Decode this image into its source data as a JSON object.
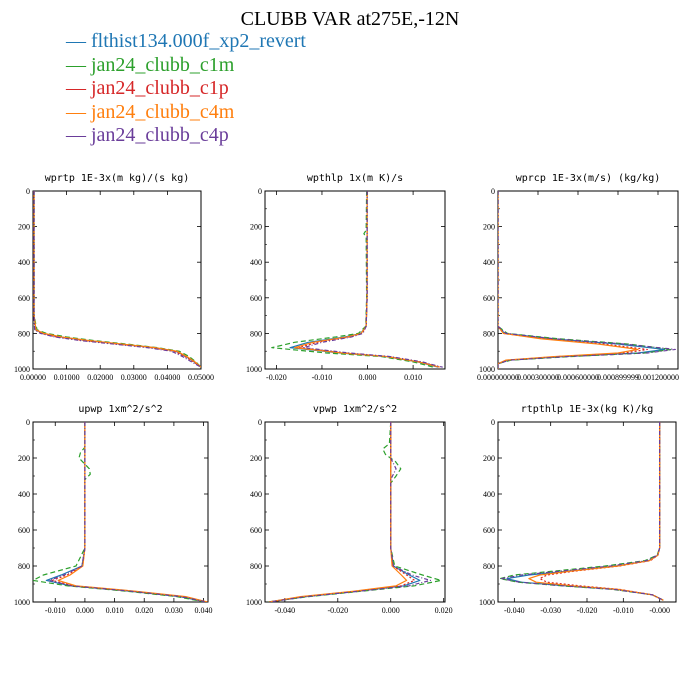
{
  "title": "CLUBB VAR at275E,-12N",
  "legend": [
    {
      "label": "— flthist134.000f_xp2_revert",
      "color": "#1f77b4"
    },
    {
      "label": "— jan24_clubb_c1m",
      "color": "#2ca02c"
    },
    {
      "label": "— jan24_clubb_c1p",
      "color": "#d62728"
    },
    {
      "label": "— jan24_clubb_c4m",
      "color": "#ff7f0e"
    },
    {
      "label": "— jan24_clubb_c4p",
      "color": "#6a3d9a"
    }
  ],
  "chart_data": [
    {
      "type": "line",
      "title": "wprtp  1E-3x(m kg)/(s kg)",
      "xlim": [
        0,
        0.05
      ],
      "ylim": [
        1000,
        0
      ],
      "xticks": [
        "0.00000",
        "0.01000",
        "0.02000",
        "0.03000",
        "0.04000",
        "0.05000"
      ],
      "xtick_values": [
        0,
        0.01,
        0.02,
        0.03,
        0.04,
        0.05
      ],
      "yticks": [
        "0",
        "200",
        "400",
        "600",
        "800",
        "1000"
      ],
      "ytick_values": [
        0,
        200,
        400,
        600,
        800,
        1000
      ],
      "series": [
        {
          "y": [
            0,
            700,
            780,
            800,
            820,
            840,
            860,
            880,
            900,
            930,
            960,
            990
          ],
          "x": [
            0.0003,
            0.0003,
            0.0008,
            0.003,
            0.008,
            0.016,
            0.026,
            0.036,
            0.0425,
            0.0455,
            0.048,
            0.05
          ]
        },
        {
          "y": [
            0,
            700,
            780,
            800,
            820,
            840,
            860,
            880,
            900,
            930,
            960,
            990
          ],
          "x": [
            0.0003,
            0.0003,
            0.0012,
            0.004,
            0.01,
            0.018,
            0.028,
            0.037,
            0.0435,
            0.0465,
            0.0485,
            0.05
          ]
        },
        {
          "y": [
            0,
            700,
            780,
            800,
            820,
            840,
            860,
            880,
            900,
            930,
            960,
            990
          ],
          "x": [
            0.0003,
            0.0003,
            0.0006,
            0.0025,
            0.007,
            0.015,
            0.025,
            0.035,
            0.042,
            0.0452,
            0.0478,
            0.05
          ]
        },
        {
          "y": [
            0,
            700,
            780,
            800,
            820,
            840,
            860,
            880,
            900,
            930,
            960,
            990
          ],
          "x": [
            0.0003,
            0.0003,
            0.0009,
            0.0032,
            0.0085,
            0.0165,
            0.0265,
            0.0362,
            0.0428,
            0.0458,
            0.0482,
            0.05
          ]
        },
        {
          "y": [
            0,
            700,
            780,
            800,
            820,
            840,
            860,
            880,
            900,
            930,
            960,
            990
          ],
          "x": [
            0.0003,
            0.0003,
            0.0005,
            0.0022,
            0.0065,
            0.014,
            0.024,
            0.034,
            0.0412,
            0.0445,
            0.0472,
            0.05
          ]
        }
      ]
    },
    {
      "type": "line",
      "title": "wpthlp  1x(m K)/s",
      "xlim": [
        -0.0225,
        0.017
      ],
      "ylim": [
        1000,
        0
      ],
      "xticks": [
        "-0.020",
        "-0.010",
        "0.000",
        "0.010"
      ],
      "xtick_values": [
        -0.02,
        -0.01,
        0,
        0.01
      ],
      "yticks": [
        "0",
        "200",
        "400",
        "600",
        "800",
        "1000"
      ],
      "ytick_values": [
        0,
        200,
        400,
        600,
        800,
        1000
      ],
      "series": [
        {
          "y": [
            0,
            600,
            760,
            800,
            820,
            850,
            880,
            910,
            930,
            960,
            990
          ],
          "x": [
            -0.0001,
            -0.0001,
            -0.0003,
            -0.0015,
            -0.005,
            -0.013,
            -0.017,
            -0.006,
            0.004,
            0.011,
            0.0155
          ]
        },
        {
          "y": [
            0,
            220,
            240,
            260,
            600,
            760,
            800,
            820,
            850,
            880,
            910,
            930,
            960,
            990
          ],
          "x": [
            -0.0002,
            -0.0003,
            -0.0008,
            -0.0003,
            -0.0002,
            -0.0004,
            -0.002,
            -0.007,
            -0.016,
            -0.021,
            -0.009,
            0.003,
            0.01,
            0.0145
          ]
        },
        {
          "y": [
            0,
            600,
            760,
            800,
            820,
            850,
            880,
            910,
            930,
            960,
            990
          ],
          "x": [
            -0.0001,
            -0.0001,
            -0.0003,
            -0.0012,
            -0.004,
            -0.011,
            -0.015,
            -0.005,
            0.0045,
            0.0115,
            0.016
          ]
        },
        {
          "y": [
            0,
            600,
            760,
            800,
            820,
            850,
            880,
            910,
            930,
            960,
            990
          ],
          "x": [
            -0.0001,
            -0.0001,
            -0.0003,
            -0.0014,
            -0.0045,
            -0.012,
            -0.016,
            -0.0055,
            0.0042,
            0.0112,
            0.0158
          ]
        },
        {
          "y": [
            0,
            600,
            760,
            800,
            820,
            850,
            880,
            910,
            930,
            960,
            990
          ],
          "x": [
            -0.0001,
            -0.0001,
            -0.0003,
            -0.001,
            -0.0035,
            -0.01,
            -0.014,
            -0.004,
            0.005,
            0.012,
            0.0165
          ]
        }
      ]
    },
    {
      "type": "line",
      "title": "wprcp  1E-3x(m/s) (kg/kg)",
      "xlim": [
        0,
        0.00135
      ],
      "ylim": [
        1000,
        0
      ],
      "xticks": [
        "0.000000000",
        "0.000300000",
        "0.000600000",
        "0.000899999",
        "0.001200000"
      ],
      "xtick_values": [
        0,
        0.0003,
        0.0006,
        0.0009,
        0.0012
      ],
      "yticks": [
        "0",
        "200",
        "400",
        "600",
        "800",
        "1000"
      ],
      "ytick_values": [
        0,
        200,
        400,
        600,
        800,
        1000
      ],
      "series": [
        {
          "y": [
            0,
            760,
            800,
            830,
            860,
            890,
            910,
            930,
            950,
            970,
            1000
          ],
          "x": [
            0,
            0,
            5e-05,
            0.0004,
            0.0009,
            0.00125,
            0.00105,
            0.0005,
            8e-05,
            0,
            0
          ]
        },
        {
          "y": [
            0,
            760,
            800,
            830,
            860,
            890,
            910,
            930,
            950,
            970,
            1000
          ],
          "x": [
            0,
            0,
            7e-05,
            0.00045,
            0.00098,
            0.0013,
            0.0011,
            0.00055,
            0.0001,
            0,
            0
          ]
        },
        {
          "y": [
            0,
            760,
            800,
            830,
            860,
            890,
            910,
            930,
            950,
            970,
            1000
          ],
          "x": [
            0,
            0,
            4e-05,
            0.00035,
            0.0008,
            0.00112,
            0.00095,
            0.00045,
            7e-05,
            0,
            0
          ]
        },
        {
          "y": [
            0,
            760,
            800,
            830,
            860,
            890,
            910,
            930,
            950,
            970,
            1000
          ],
          "x": [
            0,
            0,
            4e-05,
            0.00032,
            0.00075,
            0.00105,
            0.0009,
            0.00042,
            6e-05,
            0,
            0
          ]
        },
        {
          "y": [
            0,
            760,
            800,
            830,
            860,
            890,
            910,
            930,
            950,
            970,
            1000
          ],
          "x": [
            0,
            0,
            6e-05,
            0.00042,
            0.00095,
            0.00133,
            0.00112,
            0.00052,
            9e-05,
            0,
            0
          ]
        }
      ]
    },
    {
      "type": "line",
      "title": "upwp  1xm^2/s^2",
      "xlim": [
        -0.0175,
        0.0415
      ],
      "ylim": [
        1000,
        0
      ],
      "xticks": [
        "-0.010",
        "0.000",
        "0.010",
        "0.020",
        "0.030",
        "0.040"
      ],
      "xtick_values": [
        -0.01,
        0,
        0.01,
        0.02,
        0.03,
        0.04
      ],
      "yticks": [
        "0",
        "200",
        "400",
        "600",
        "800",
        "1000"
      ],
      "ytick_values": [
        0,
        200,
        400,
        600,
        800,
        1000
      ],
      "series": [
        {
          "y": [
            0,
            700,
            800,
            850,
            880,
            910,
            940,
            970,
            1000
          ],
          "x": [
            0,
            0,
            -0.001,
            -0.008,
            -0.013,
            -0.005,
            0.015,
            0.032,
            0.041
          ]
        },
        {
          "y": [
            0,
            140,
            170,
            200,
            260,
            290,
            320,
            700,
            800,
            850,
            880,
            910,
            940,
            970,
            1000
          ],
          "x": [
            0,
            0,
            -0.0015,
            -0.002,
            0.0015,
            0.0018,
            0,
            0,
            -0.003,
            -0.014,
            -0.0175,
            -0.006,
            0.014,
            0.031,
            0.0405
          ]
        },
        {
          "y": [
            0,
            700,
            800,
            850,
            880,
            910,
            940,
            970,
            1000
          ],
          "x": [
            0,
            0,
            -0.0008,
            -0.006,
            -0.011,
            -0.004,
            0.016,
            0.033,
            0.0412
          ]
        },
        {
          "y": [
            0,
            700,
            800,
            850,
            880,
            910,
            940,
            970,
            1000
          ],
          "x": [
            0,
            0,
            -0.0007,
            -0.005,
            -0.009,
            -0.003,
            0.017,
            0.034,
            0.0413
          ]
        },
        {
          "y": [
            0,
            700,
            800,
            850,
            880,
            910,
            940,
            970,
            1000
          ],
          "x": [
            0,
            0,
            -0.001,
            -0.007,
            -0.012,
            -0.0045,
            0.0155,
            0.0325,
            0.041
          ]
        }
      ]
    },
    {
      "type": "line",
      "title": "vpwp  1xm^2/s^2",
      "xlim": [
        -0.0475,
        0.0205
      ],
      "ylim": [
        1000,
        0
      ],
      "xticks": [
        "-0.040",
        "-0.020",
        "0.000",
        "0.020"
      ],
      "xtick_values": [
        -0.04,
        -0.02,
        0,
        0.02
      ],
      "yticks": [
        "0",
        "200",
        "400",
        "600",
        "800",
        "1000"
      ],
      "ytick_values": [
        0,
        200,
        400,
        600,
        800,
        1000
      ],
      "series": [
        {
          "y": [
            0,
            700,
            800,
            850,
            880,
            910,
            940,
            970,
            1000
          ],
          "x": [
            0,
            0,
            0.001,
            0.007,
            0.011,
            0.005,
            -0.012,
            -0.032,
            -0.046
          ]
        },
        {
          "y": [
            0,
            120,
            150,
            180,
            220,
            260,
            300,
            340,
            700,
            800,
            850,
            880,
            910,
            940,
            970,
            1000
          ],
          "x": [
            0,
            -0.0005,
            -0.003,
            -0.002,
            0.0018,
            0.0038,
            0.002,
            0,
            0,
            0.0015,
            0.012,
            0.019,
            0.009,
            -0.011,
            -0.031,
            -0.0465
          ]
        },
        {
          "y": [
            0,
            700,
            800,
            850,
            880,
            910,
            940,
            970,
            1000
          ],
          "x": [
            0,
            0,
            0.0008,
            0.006,
            0.009,
            0.004,
            -0.013,
            -0.033,
            -0.046
          ]
        },
        {
          "y": [
            0,
            700,
            800,
            850,
            880,
            910,
            940,
            970,
            1000
          ],
          "x": [
            0,
            0,
            0.0005,
            0.004,
            0.006,
            0.002,
            -0.014,
            -0.034,
            -0.046
          ]
        },
        {
          "y": [
            0,
            200,
            260,
            320,
            700,
            800,
            850,
            880,
            910,
            940,
            970,
            1000
          ],
          "x": [
            0,
            0,
            0.002,
            0,
            0,
            0.001,
            0.008,
            0.015,
            0.007,
            -0.012,
            -0.032,
            -0.046
          ]
        }
      ]
    },
    {
      "type": "line",
      "title": "rtpthlp  1E-3x(kg K)/kg",
      "xlim": [
        -0.0445,
        0.0045
      ],
      "ylim": [
        1000,
        0
      ],
      "xticks": [
        "-0.040",
        "-0.030",
        "-0.020",
        "-0.010",
        "-0.000"
      ],
      "xtick_values": [
        -0.04,
        -0.03,
        -0.02,
        -0.01,
        0
      ],
      "yticks": [
        "0",
        "200",
        "400",
        "600",
        "800",
        "1000"
      ],
      "ytick_values": [
        0,
        200,
        400,
        600,
        800,
        1000
      ],
      "series": [
        {
          "y": [
            0,
            700,
            740,
            770,
            800,
            830,
            850,
            870,
            890,
            910,
            930,
            960,
            990
          ],
          "x": [
            0,
            0,
            -0.0005,
            -0.003,
            -0.012,
            -0.026,
            -0.036,
            -0.042,
            -0.038,
            -0.026,
            -0.012,
            -0.002,
            0.001
          ]
        },
        {
          "y": [
            0,
            700,
            740,
            770,
            800,
            830,
            850,
            870,
            890,
            910,
            930,
            960,
            990
          ],
          "x": [
            0,
            0,
            -0.0007,
            -0.004,
            -0.015,
            -0.03,
            -0.04,
            -0.044,
            -0.039,
            -0.027,
            -0.013,
            -0.002,
            0.001
          ]
        },
        {
          "y": [
            0,
            700,
            740,
            770,
            800,
            830,
            850,
            870,
            890,
            910,
            930,
            960,
            990
          ],
          "x": [
            0,
            0,
            -0.0005,
            -0.0025,
            -0.011,
            -0.024,
            -0.031,
            -0.033,
            -0.031,
            -0.022,
            -0.011,
            -0.002,
            0.001
          ]
        },
        {
          "y": [
            0,
            700,
            740,
            770,
            800,
            830,
            850,
            870,
            890,
            910,
            930,
            960,
            990
          ],
          "x": [
            0,
            0,
            -0.0005,
            -0.0028,
            -0.0115,
            -0.025,
            -0.033,
            -0.036,
            -0.034,
            -0.024,
            -0.0115,
            -0.002,
            0.001
          ]
        },
        {
          "y": [
            0,
            700,
            740,
            770,
            800,
            830,
            850,
            870,
            890,
            910,
            930,
            960,
            990
          ],
          "x": [
            0,
            0,
            -0.0006,
            -0.0035,
            -0.0135,
            -0.028,
            -0.038,
            -0.0435,
            -0.0385,
            -0.0265,
            -0.0125,
            -0.002,
            0.001
          ]
        }
      ]
    }
  ]
}
